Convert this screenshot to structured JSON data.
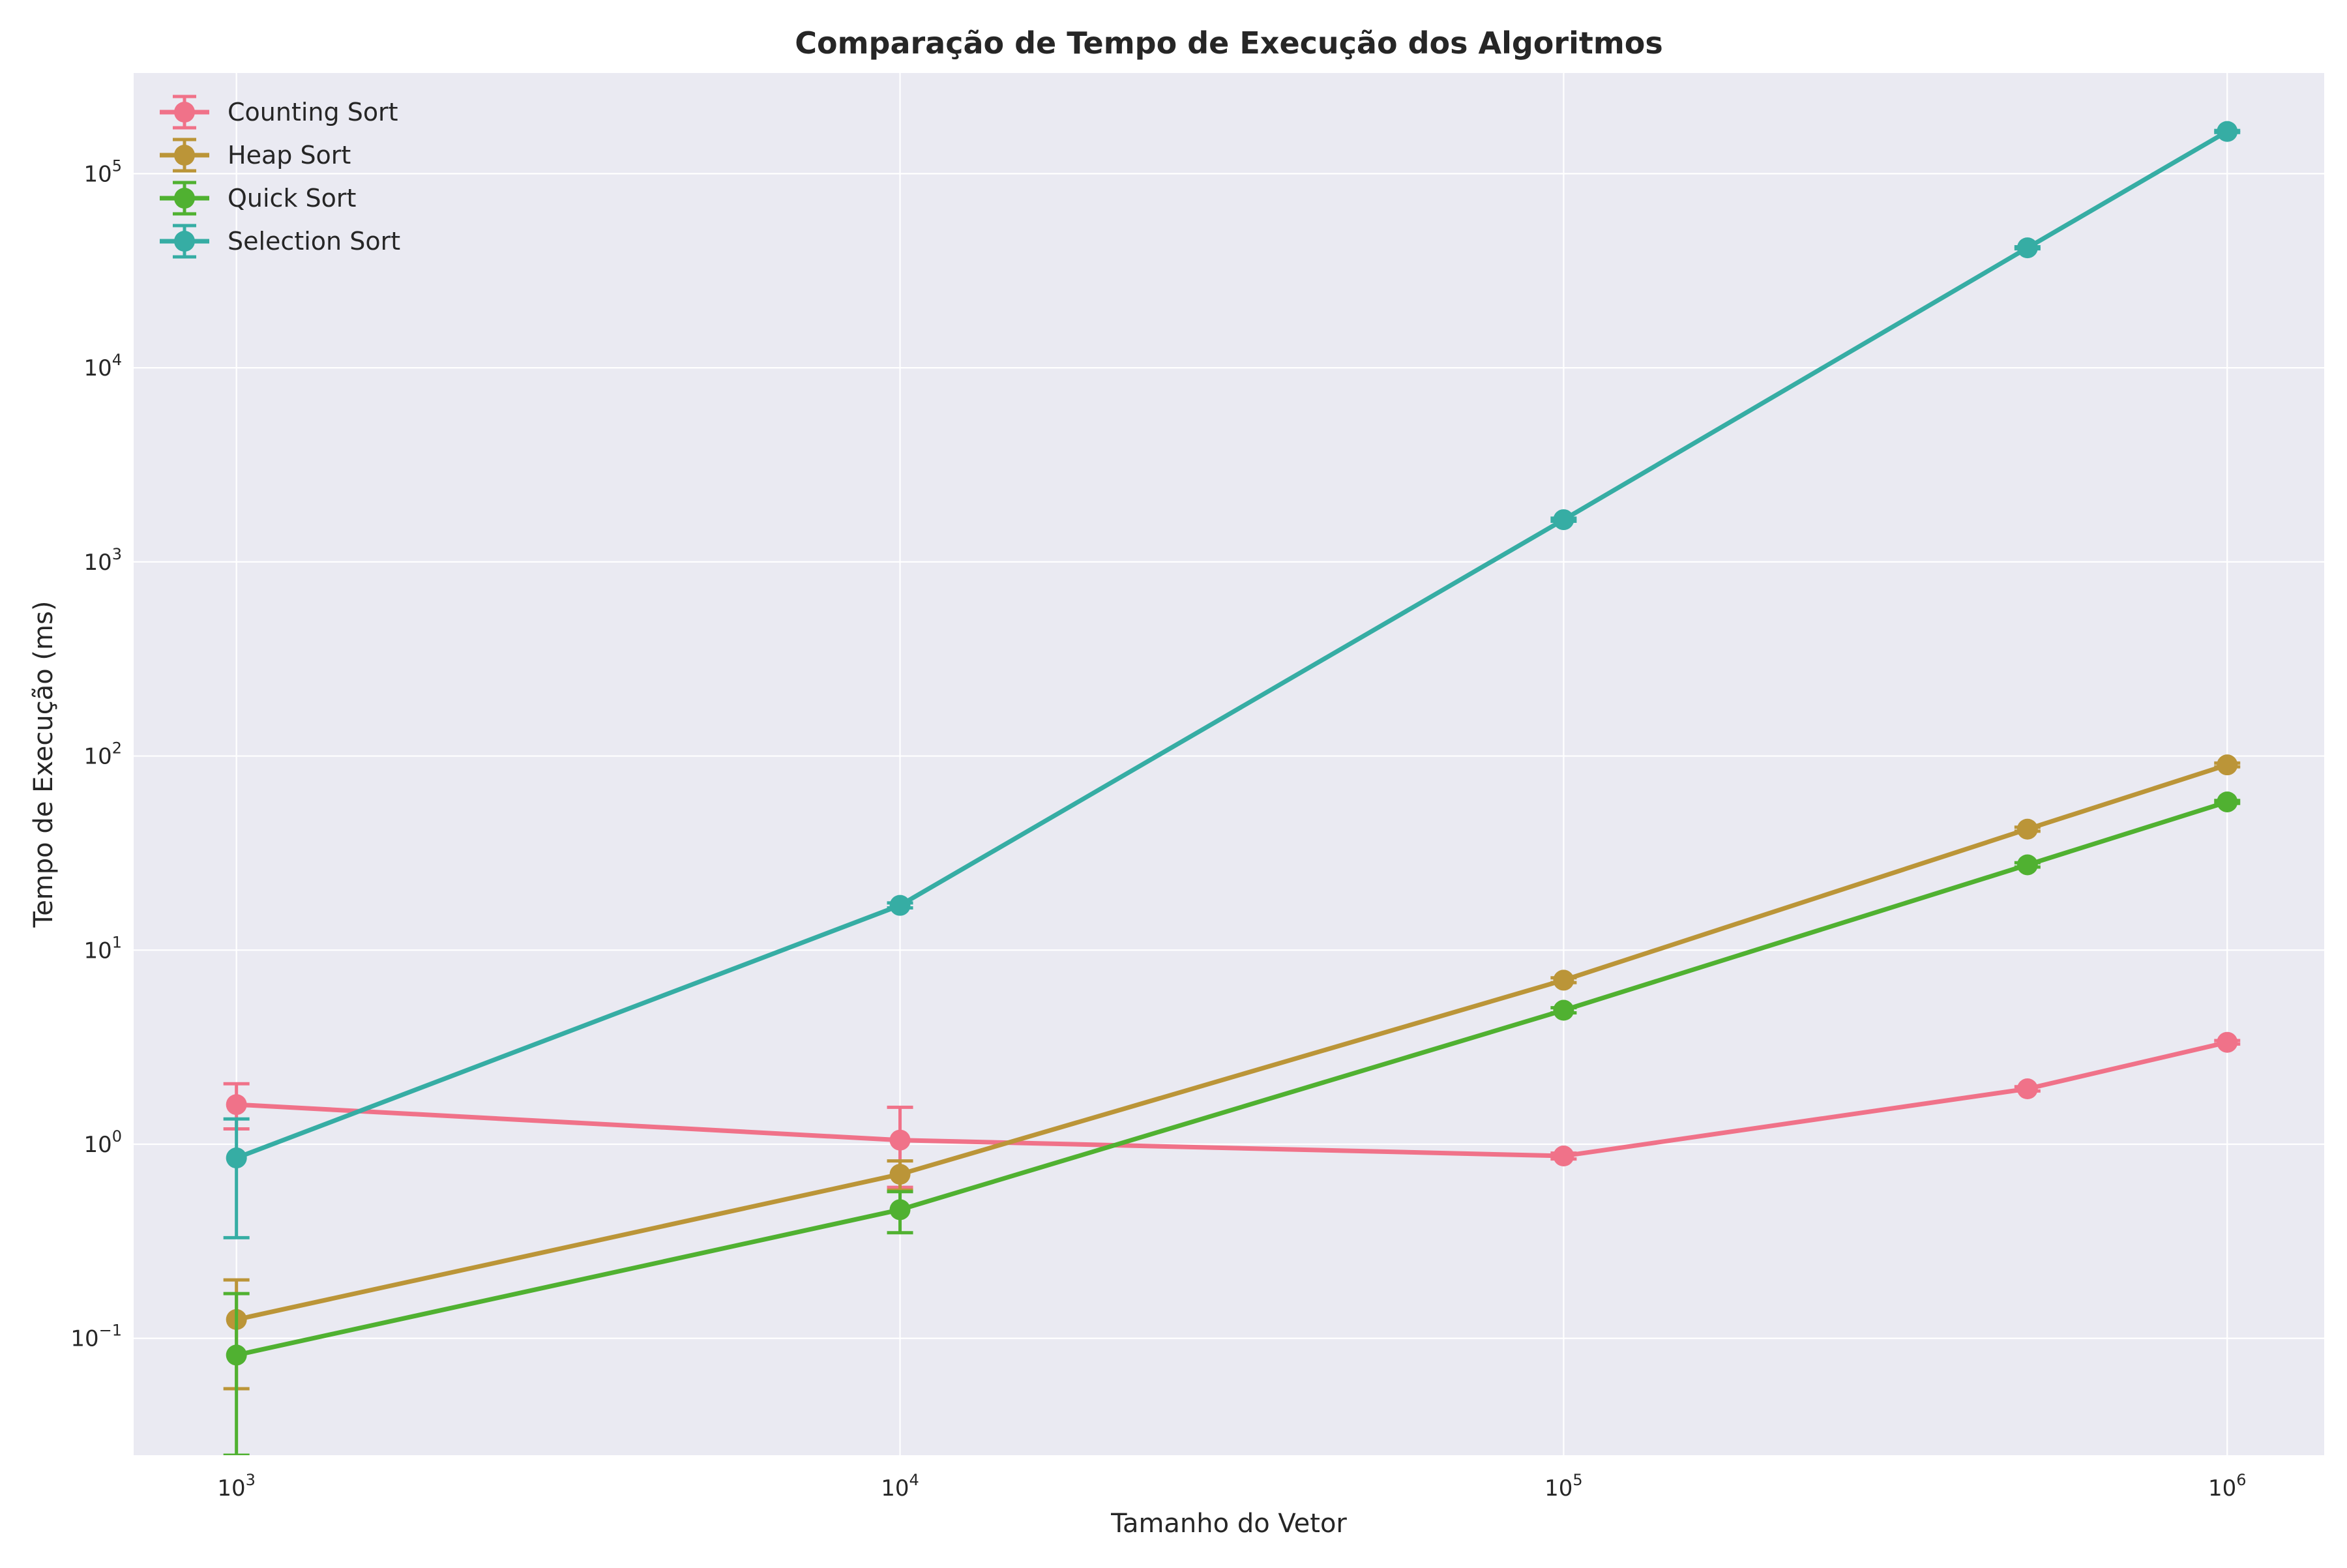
{
  "chart_data": {
    "type": "line",
    "title": "Comparação de Tempo de Execução dos Algoritmos",
    "xlabel": "Tamanho do Vetor",
    "ylabel": "Tempo de Execução (ms)",
    "x_scale": "log",
    "y_scale": "log",
    "xlim": [
      700,
      1400000
    ],
    "ylim": [
      0.025,
      330000
    ],
    "grid": true,
    "legend_position": "top-left",
    "x_ticks": [
      {
        "value": 1000,
        "base": "10",
        "exp": "3"
      },
      {
        "value": 10000,
        "base": "10",
        "exp": "4"
      },
      {
        "value": 100000,
        "base": "10",
        "exp": "5"
      },
      {
        "value": 1000000,
        "base": "10",
        "exp": "6"
      }
    ],
    "y_ticks": [
      {
        "value": 0.1,
        "base": "10",
        "exp": "−1"
      },
      {
        "value": 1,
        "base": "10",
        "exp": "0"
      },
      {
        "value": 10,
        "base": "10",
        "exp": "1"
      },
      {
        "value": 100,
        "base": "10",
        "exp": "2"
      },
      {
        "value": 1000,
        "base": "10",
        "exp": "3"
      },
      {
        "value": 10000,
        "base": "10",
        "exp": "4"
      },
      {
        "value": 100000,
        "base": "10",
        "exp": "5"
      }
    ],
    "series": [
      {
        "name": "Counting Sort",
        "color": "#f07289",
        "x": [
          1000,
          10000,
          100000,
          500000,
          1000000
        ],
        "y": [
          1.6,
          1.05,
          0.87,
          1.93,
          3.35
        ],
        "yerr_low": [
          1.2,
          0.6,
          0.84,
          1.88,
          3.28
        ],
        "yerr_high": [
          2.05,
          1.55,
          0.9,
          1.98,
          3.42
        ]
      },
      {
        "name": "Heap Sort",
        "color": "#bb9538",
        "x": [
          1000,
          10000,
          100000,
          500000,
          1000000
        ],
        "y": [
          0.125,
          0.7,
          7.0,
          42,
          90
        ],
        "yerr_low": [
          0.055,
          0.58,
          6.8,
          41,
          88
        ],
        "yerr_high": [
          0.2,
          0.82,
          7.2,
          43,
          92
        ]
      },
      {
        "name": "Quick Sort",
        "color": "#50b131",
        "x": [
          1000,
          10000,
          100000,
          500000,
          1000000
        ],
        "y": [
          0.082,
          0.46,
          4.9,
          27.5,
          58
        ],
        "yerr_low": [
          0.025,
          0.35,
          4.75,
          26.8,
          57
        ],
        "yerr_high": [
          0.17,
          0.57,
          5.05,
          28.2,
          59
        ]
      },
      {
        "name": "Selection Sort",
        "color": "#36ada4",
        "x": [
          1000,
          10000,
          100000,
          500000,
          1000000
        ],
        "y": [
          0.85,
          17,
          1650,
          41500,
          165000
        ],
        "yerr_low": [
          0.33,
          16.5,
          1620,
          41000,
          163000
        ],
        "yerr_high": [
          1.35,
          17.5,
          1680,
          42000,
          167000
        ]
      }
    ]
  }
}
